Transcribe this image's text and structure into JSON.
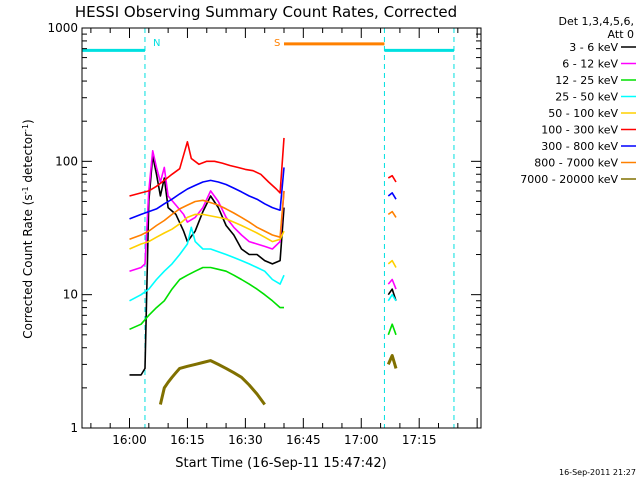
{
  "chart_data": {
    "type": "line",
    "title": "HESSI Observing Summary Count Rates, Corrected",
    "xlabel": "Start Time (16-Sep-11 15:47:42)",
    "ylabel_parts": [
      "Corrected Count Rate (s",
      "-1",
      " detector",
      "-1",
      ")"
    ],
    "y_scale": "log",
    "ylim": [
      1,
      1000
    ],
    "xlim": [
      "15:47:42",
      "17:31:00"
    ],
    "y_ticks": [
      "1",
      "10",
      "100",
      "1000"
    ],
    "x_ticks": [
      "16:00",
      "16:15",
      "16:30",
      "16:45",
      "17:00",
      "17:15"
    ],
    "footer": "16-Sep-2011 21:27",
    "legend": {
      "header": [
        "Det 1,3,4,5,6,",
        "Att 0"
      ],
      "placement": "right"
    },
    "flags": {
      "markers": [
        {
          "label": "N",
          "color": "#00e0e0"
        },
        {
          "label": "S",
          "color": "#ff8000"
        }
      ],
      "segments": [
        {
          "name": "night",
          "color": "#00e0e0",
          "start": "15:47:42",
          "end": "16:04",
          "y": 680
        },
        {
          "name": "saa",
          "color": "#ff8000",
          "start": "16:40",
          "end": "17:06",
          "y": 760
        },
        {
          "name": "night",
          "color": "#00e0e0",
          "start": "17:06",
          "end": "17:24",
          "y": 680
        }
      ],
      "dashed_lines": [
        "16:04",
        "17:06",
        "17:24"
      ]
    },
    "series": [
      {
        "name": "3 - 6 keV",
        "color": "#000000",
        "segments": [
          [
            [
              "16:00",
              2.5
            ],
            [
              "16:03",
              2.5
            ],
            [
              "16:04",
              2.8
            ],
            [
              "16:05",
              50
            ],
            [
              "16:06",
              110
            ],
            [
              "16:07",
              80
            ],
            [
              "16:08",
              55
            ],
            [
              "16:09",
              75
            ],
            [
              "16:10",
              45
            ],
            [
              "16:12",
              40
            ],
            [
              "16:14",
              30
            ],
            [
              "16:15",
              25
            ],
            [
              "16:17",
              30
            ],
            [
              "16:19",
              42
            ],
            [
              "16:21",
              55
            ],
            [
              "16:23",
              45
            ],
            [
              "16:25",
              33
            ],
            [
              "16:27",
              28
            ],
            [
              "16:29",
              22
            ],
            [
              "16:31",
              20
            ],
            [
              "16:33",
              20
            ],
            [
              "16:35",
              18
            ],
            [
              "16:37",
              17
            ],
            [
              "16:39",
              18
            ],
            [
              "16:40",
              45
            ]
          ],
          [
            [
              "17:07",
              10
            ],
            [
              "17:08",
              11
            ],
            [
              "17:09",
              9
            ]
          ]
        ]
      },
      {
        "name": "6 - 12 keV",
        "color": "#ff00ff",
        "segments": [
          [
            [
              "16:00",
              15
            ],
            [
              "16:03",
              16
            ],
            [
              "16:04",
              17
            ],
            [
              "16:05",
              60
            ],
            [
              "16:06",
              120
            ],
            [
              "16:07",
              90
            ],
            [
              "16:08",
              70
            ],
            [
              "16:09",
              90
            ],
            [
              "16:10",
              55
            ],
            [
              "16:12",
              47
            ],
            [
              "16:14",
              40
            ],
            [
              "16:15",
              35
            ],
            [
              "16:17",
              38
            ],
            [
              "16:19",
              45
            ],
            [
              "16:21",
              60
            ],
            [
              "16:23",
              50
            ],
            [
              "16:25",
              38
            ],
            [
              "16:27",
              32
            ],
            [
              "16:29",
              28
            ],
            [
              "16:31",
              25
            ],
            [
              "16:33",
              24
            ],
            [
              "16:35",
              23
            ],
            [
              "16:37",
              22
            ],
            [
              "16:39",
              25
            ],
            [
              "16:40",
              60
            ]
          ],
          [
            [
              "17:07",
              12
            ],
            [
              "17:08",
              13
            ],
            [
              "17:09",
              11
            ]
          ]
        ]
      },
      {
        "name": "12 - 25 keV",
        "color": "#00e000",
        "segments": [
          [
            [
              "16:00",
              5.5
            ],
            [
              "16:03",
              6
            ],
            [
              "16:05",
              7
            ],
            [
              "16:07",
              8
            ],
            [
              "16:09",
              9
            ],
            [
              "16:11",
              11
            ],
            [
              "16:13",
              13
            ],
            [
              "16:15",
              14
            ],
            [
              "16:17",
              15
            ],
            [
              "16:19",
              16
            ],
            [
              "16:21",
              16
            ],
            [
              "16:23",
              15.5
            ],
            [
              "16:25",
              15
            ],
            [
              "16:27",
              14
            ],
            [
              "16:29",
              13
            ],
            [
              "16:31",
              12
            ],
            [
              "16:33",
              11
            ],
            [
              "16:35",
              10
            ],
            [
              "16:37",
              9
            ],
            [
              "16:39",
              8
            ],
            [
              "16:40",
              8
            ]
          ],
          [
            [
              "17:07",
              5
            ],
            [
              "17:08",
              6
            ],
            [
              "17:09",
              5
            ]
          ]
        ]
      },
      {
        "name": "25 - 50 keV",
        "color": "#00ffff",
        "segments": [
          [
            [
              "16:00",
              9
            ],
            [
              "16:03",
              10
            ],
            [
              "16:05",
              11
            ],
            [
              "16:07",
              13
            ],
            [
              "16:09",
              15
            ],
            [
              "16:11",
              17
            ],
            [
              "16:13",
              20
            ],
            [
              "16:15",
              24
            ],
            [
              "16:16",
              32
            ],
            [
              "16:17",
              25
            ],
            [
              "16:19",
              22
            ],
            [
              "16:21",
              22
            ],
            [
              "16:23",
              21
            ],
            [
              "16:25",
              20
            ],
            [
              "16:27",
              19
            ],
            [
              "16:29",
              18
            ],
            [
              "16:31",
              17
            ],
            [
              "16:33",
              16
            ],
            [
              "16:35",
              15
            ],
            [
              "16:37",
              13
            ],
            [
              "16:39",
              12
            ],
            [
              "16:40",
              14
            ]
          ],
          [
            [
              "17:07",
              9
            ],
            [
              "17:08",
              10
            ],
            [
              "17:09",
              9
            ]
          ]
        ]
      },
      {
        "name": "50 - 100 keV",
        "color": "#ffd000",
        "segments": [
          [
            [
              "16:00",
              22
            ],
            [
              "16:03",
              24
            ],
            [
              "16:05",
              25
            ],
            [
              "16:07",
              27
            ],
            [
              "16:09",
              29
            ],
            [
              "16:11",
              31
            ],
            [
              "16:13",
              34
            ],
            [
              "16:15",
              38
            ],
            [
              "16:17",
              40
            ],
            [
              "16:19",
              40
            ],
            [
              "16:21",
              39
            ],
            [
              "16:23",
              38
            ],
            [
              "16:25",
              37
            ],
            [
              "16:27",
              35
            ],
            [
              "16:29",
              33
            ],
            [
              "16:31",
              31
            ],
            [
              "16:33",
              29
            ],
            [
              "16:35",
              27
            ],
            [
              "16:37",
              25
            ],
            [
              "16:39",
              26
            ],
            [
              "16:40",
              30
            ]
          ],
          [
            [
              "17:07",
              17
            ],
            [
              "17:08",
              18
            ],
            [
              "17:09",
              16
            ]
          ]
        ]
      },
      {
        "name": "100 - 300 keV",
        "color": "#ff0000",
        "segments": [
          [
            [
              "16:00",
              55
            ],
            [
              "16:03",
              58
            ],
            [
              "16:05",
              60
            ],
            [
              "16:07",
              65
            ],
            [
              "16:09",
              72
            ],
            [
              "16:11",
              80
            ],
            [
              "16:13",
              88
            ],
            [
              "16:15",
              140
            ],
            [
              "16:16",
              105
            ],
            [
              "16:18",
              95
            ],
            [
              "16:20",
              100
            ],
            [
              "16:22",
              100
            ],
            [
              "16:24",
              97
            ],
            [
              "16:26",
              93
            ],
            [
              "16:28",
              90
            ],
            [
              "16:30",
              87
            ],
            [
              "16:32",
              85
            ],
            [
              "16:34",
              80
            ],
            [
              "16:36",
              70
            ],
            [
              "16:38",
              62
            ],
            [
              "16:39",
              58
            ],
            [
              "16:40",
              150
            ]
          ],
          [
            [
              "17:07",
              75
            ],
            [
              "17:08",
              78
            ],
            [
              "17:09",
              70
            ]
          ]
        ]
      },
      {
        "name": "300 - 800 keV",
        "color": "#0000ff",
        "segments": [
          [
            [
              "16:00",
              37
            ],
            [
              "16:03",
              40
            ],
            [
              "16:05",
              42
            ],
            [
              "16:07",
              44
            ],
            [
              "16:09",
              48
            ],
            [
              "16:11",
              52
            ],
            [
              "16:13",
              57
            ],
            [
              "16:15",
              62
            ],
            [
              "16:17",
              66
            ],
            [
              "16:19",
              70
            ],
            [
              "16:21",
              72
            ],
            [
              "16:23",
              70
            ],
            [
              "16:25",
              67
            ],
            [
              "16:27",
              63
            ],
            [
              "16:29",
              59
            ],
            [
              "16:31",
              55
            ],
            [
              "16:33",
              52
            ],
            [
              "16:35",
              48
            ],
            [
              "16:37",
              45
            ],
            [
              "16:39",
              43
            ],
            [
              "16:40",
              90
            ]
          ],
          [
            [
              "17:07",
              55
            ],
            [
              "17:08",
              58
            ],
            [
              "17:09",
              52
            ]
          ]
        ]
      },
      {
        "name": "800 - 7000 keV",
        "color": "#ff8000",
        "segments": [
          [
            [
              "16:00",
              26
            ],
            [
              "16:03",
              28
            ],
            [
              "16:05",
              30
            ],
            [
              "16:07",
              33
            ],
            [
              "16:09",
              36
            ],
            [
              "16:11",
              40
            ],
            [
              "16:13",
              44
            ],
            [
              "16:15",
              47
            ],
            [
              "16:17",
              50
            ],
            [
              "16:19",
              51
            ],
            [
              "16:21",
              49
            ],
            [
              "16:23",
              47
            ],
            [
              "16:25",
              44
            ],
            [
              "16:27",
              41
            ],
            [
              "16:29",
              38
            ],
            [
              "16:31",
              35
            ],
            [
              "16:33",
              32
            ],
            [
              "16:35",
              30
            ],
            [
              "16:37",
              28
            ],
            [
              "16:39",
              27
            ],
            [
              "16:40",
              60
            ]
          ],
          [
            [
              "17:07",
              40
            ],
            [
              "17:08",
              42
            ],
            [
              "17:09",
              38
            ]
          ]
        ]
      },
      {
        "name": "7000 - 20000 keV",
        "color": "#807000",
        "segments": [
          [
            [
              "16:08",
              1.5
            ],
            [
              "16:09",
              2.0
            ],
            [
              "16:10",
              2.2
            ],
            [
              "16:11",
              2.4
            ],
            [
              "16:12",
              2.6
            ],
            [
              "16:13",
              2.8
            ],
            [
              "16:15",
              2.9
            ],
            [
              "16:17",
              3.0
            ],
            [
              "16:19",
              3.1
            ],
            [
              "16:21",
              3.2
            ],
            [
              "16:23",
              3.0
            ],
            [
              "16:25",
              2.8
            ],
            [
              "16:27",
              2.6
            ],
            [
              "16:29",
              2.4
            ],
            [
              "16:31",
              2.1
            ],
            [
              "16:33",
              1.8
            ],
            [
              "16:35",
              1.5
            ]
          ],
          [
            [
              "17:07",
              3.0
            ],
            [
              "17:08",
              3.5
            ],
            [
              "17:09",
              2.8
            ]
          ]
        ]
      }
    ]
  }
}
